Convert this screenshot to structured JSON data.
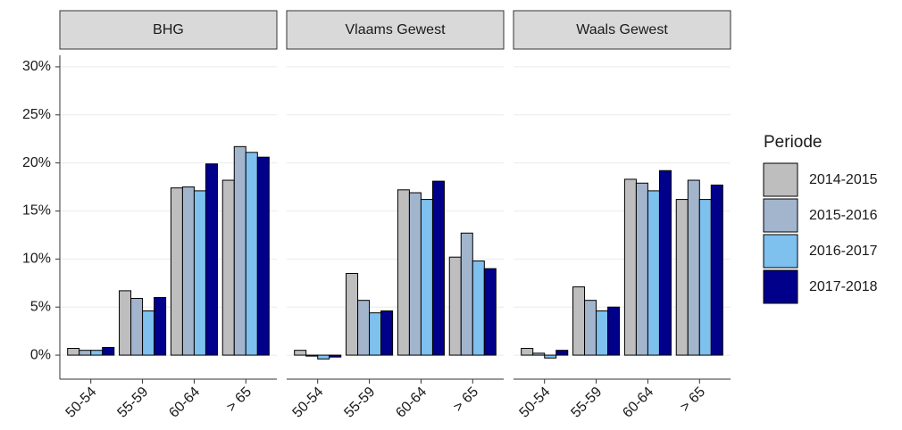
{
  "chart_data": [
    {
      "type": "bar",
      "title": "BHG",
      "legend_title": "Periode",
      "categories": [
        "50-54",
        "55-59",
        "60-64",
        "> 65"
      ],
      "series": [
        {
          "name": "2014-2015",
          "color": "#bebebe",
          "values": [
            0.7,
            6.7,
            17.4,
            18.2
          ]
        },
        {
          "name": "2015-2016",
          "color": "#a2b5cd",
          "values": [
            0.5,
            5.9,
            17.5,
            21.7
          ]
        },
        {
          "name": "2016-2017",
          "color": "#7ec0ee",
          "values": [
            0.5,
            4.6,
            17.1,
            21.1
          ]
        },
        {
          "name": "2017-2018",
          "color": "#00008b",
          "values": [
            0.8,
            6.0,
            19.9,
            20.6
          ]
        }
      ],
      "ylim": [
        -2.5,
        31.2
      ],
      "yticks": [
        {
          "value": 0,
          "label": "0%"
        },
        {
          "value": 5,
          "label": "5%"
        },
        {
          "value": 10,
          "label": "10%"
        },
        {
          "value": 15,
          "label": "15%"
        },
        {
          "value": 20,
          "label": "20%"
        },
        {
          "value": 25,
          "label": "25%"
        },
        {
          "value": 30,
          "label": "30%"
        }
      ]
    },
    {
      "type": "bar",
      "title": "Vlaams Gewest",
      "categories": [
        "50-54",
        "55-59",
        "60-64",
        "> 65"
      ],
      "series": [
        {
          "values": [
            0.5,
            8.5,
            17.2,
            10.2
          ]
        },
        {
          "values": [
            -0.1,
            5.7,
            16.9,
            12.7
          ]
        },
        {
          "values": [
            -0.4,
            4.4,
            16.2,
            9.8
          ]
        },
        {
          "values": [
            -0.2,
            4.6,
            18.1,
            9.0
          ]
        }
      ],
      "ylim": [
        -2.5,
        31.2
      ]
    },
    {
      "type": "bar",
      "title": "Waals Gewest",
      "categories": [
        "50-54",
        "55-59",
        "60-64",
        "> 65"
      ],
      "series": [
        {
          "values": [
            0.7,
            7.1,
            18.3,
            16.2
          ]
        },
        {
          "values": [
            0.2,
            5.7,
            17.9,
            18.2
          ]
        },
        {
          "values": [
            -0.3,
            4.6,
            17.1,
            16.2
          ]
        },
        {
          "values": [
            0.5,
            5.0,
            19.2,
            17.7
          ]
        }
      ],
      "ylim": [
        -2.5,
        31.2
      ]
    }
  ]
}
